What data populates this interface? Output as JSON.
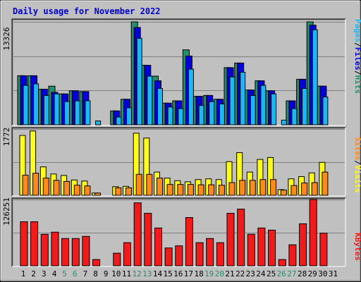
{
  "chart_data": {
    "type": "bar",
    "title": "Daily usage for November 2022",
    "colors": {
      "hits": "#248E6E",
      "files": "#0000DA",
      "pages": "#1BB8F5",
      "visits": "#FFFF1B",
      "sites": "#FF8A1B",
      "kbytes": "#F21B1B",
      "background": "#C0C0C0",
      "title": "#0000D0",
      "weekend": "#2A8A6A"
    },
    "days": [
      "1",
      "2",
      "3",
      "4",
      "5",
      "6",
      "7",
      "8",
      "9",
      "10",
      "11",
      "12",
      "13",
      "14",
      "15",
      "16",
      "17",
      "18",
      "19",
      "20",
      "21",
      "22",
      "23",
      "24",
      "25",
      "26",
      "27",
      "28",
      "29",
      "30",
      "31"
    ],
    "weekend_days": [
      "5",
      "6",
      "12",
      "13",
      "19",
      "20",
      "26",
      "27"
    ],
    "panels": [
      {
        "name": "hits-files-pages",
        "ymax_label": "13326",
        "ymax": 13326,
        "ylim": [
          0,
          13326
        ],
        "legend": [
          "Pages",
          "/",
          "Files",
          "/",
          "Hits"
        ],
        "series": [
          {
            "name": "Hits",
            "values": [
              6350,
              6350,
              4600,
              5000,
              4000,
              4400,
              4300,
              0,
              0,
              1800,
              3300,
              13326,
              7700,
              6300,
              2800,
              3100,
              9700,
              3700,
              3800,
              3300,
              7400,
              8000,
              4500,
              5700,
              4400,
              0,
              3100,
              5900,
              13326,
              5000,
              null
            ]
          },
          {
            "name": "Files",
            "values": [
              6350,
              6350,
              4600,
              4200,
              4000,
              4400,
              4300,
              0,
              0,
              1800,
              3300,
              12600,
              7700,
              5700,
              2800,
              3100,
              8900,
              3700,
              3800,
              3300,
              7400,
              8000,
              4500,
              5700,
              4400,
              0,
              3100,
              5900,
              12900,
              5000,
              null
            ]
          },
          {
            "name": "Pages",
            "values": [
              5100,
              5300,
              3800,
              4000,
              3000,
              3100,
              3100,
              500,
              0,
              1000,
              2200,
              11200,
              6300,
              4700,
              2300,
              2100,
              7200,
              2500,
              3000,
              2700,
              6200,
              6800,
              3800,
              5100,
              4000,
              600,
              2100,
              4700,
              12300,
              3600,
              null
            ]
          }
        ]
      },
      {
        "name": "visits-sites",
        "ymax_label": "1772",
        "ymax": 1772,
        "ylim": [
          0,
          1772
        ],
        "legend": [
          "Sites",
          "/",
          "Visits"
        ],
        "series": [
          {
            "name": "Visits",
            "values": [
              1600,
              1720,
              760,
              570,
              530,
              410,
              380,
              60,
              0,
              230,
              240,
              1660,
              1530,
              620,
              460,
              390,
              360,
              420,
              440,
              420,
              900,
              1140,
              620,
              960,
              1010,
              150,
              440,
              500,
              600,
              880,
              null
            ]
          },
          {
            "name": "Sites",
            "values": [
              540,
              590,
              460,
              400,
              370,
              270,
              250,
              60,
              0,
              200,
              200,
              560,
              560,
              460,
              290,
              290,
              290,
              280,
              280,
              270,
              340,
              400,
              400,
              420,
              420,
              140,
              260,
              330,
              340,
              620,
              null
            ]
          }
        ]
      },
      {
        "name": "kbytes",
        "ymax_label": "126251",
        "ymax": 126251,
        "ylim": [
          0,
          126251
        ],
        "legend": [
          "KBytes"
        ],
        "series": [
          {
            "name": "KBytes",
            "values": [
              84000,
              84000,
              60000,
              64000,
              52000,
              52000,
              56000,
              12000,
              0,
              24000,
              44000,
              120000,
              100000,
              72000,
              34000,
              38000,
              92000,
              44000,
              52000,
              44000,
              100000,
              108000,
              60000,
              72000,
              68000,
              12000,
              40000,
              80000,
              126251,
              62000,
              null
            ]
          }
        ]
      }
    ]
  }
}
